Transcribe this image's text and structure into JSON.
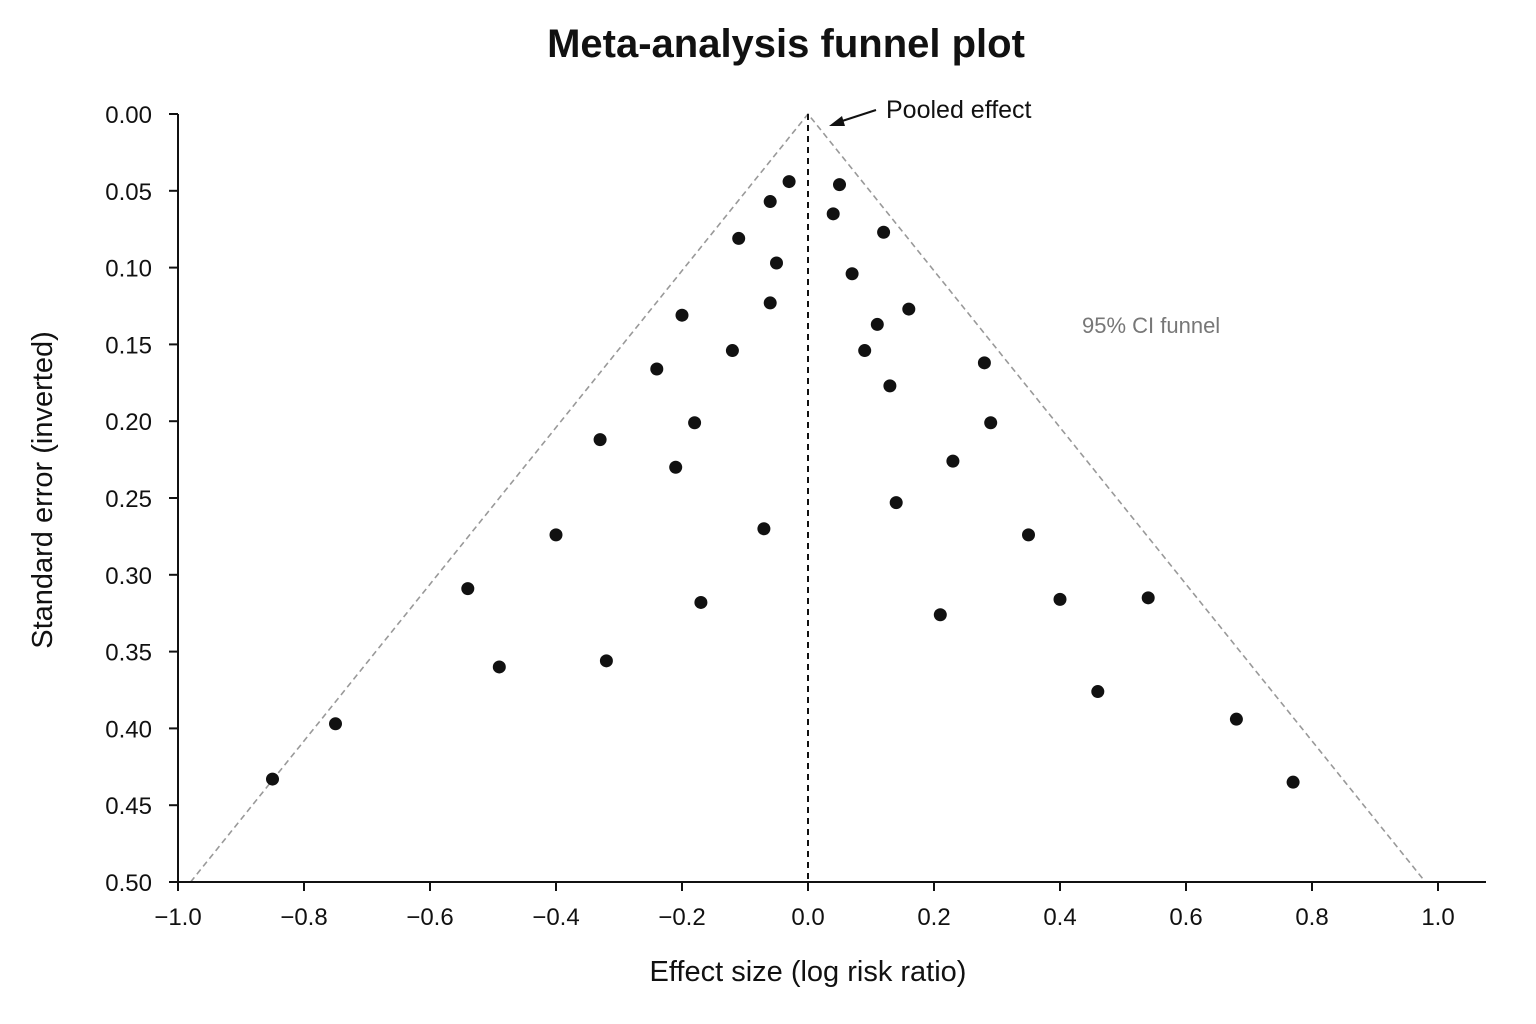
{
  "chart_data": {
    "type": "scatter",
    "title": "Meta-analysis funnel plot",
    "xlabel": "Effect size (log risk ratio)",
    "ylabel": "Standard error (inverted)",
    "xlim": [
      -1.0,
      1.0
    ],
    "ylim": [
      0.0,
      0.5
    ],
    "y_inverted": true,
    "x_ticks": [
      "−1.0",
      "−0.8",
      "−0.6",
      "−0.4",
      "−0.2",
      "0.0",
      "0.2",
      "0.4",
      "0.6",
      "0.8",
      "1.0"
    ],
    "x_tick_values": [
      -1.0,
      -0.8,
      -0.6,
      -0.4,
      -0.2,
      0.0,
      0.2,
      0.4,
      0.6,
      0.8,
      1.0
    ],
    "y_ticks": [
      "0.00",
      "0.05",
      "0.10",
      "0.15",
      "0.20",
      "0.25",
      "0.30",
      "0.35",
      "0.40",
      "0.45",
      "0.50"
    ],
    "y_tick_values": [
      0.0,
      0.05,
      0.1,
      0.15,
      0.2,
      0.25,
      0.3,
      0.35,
      0.4,
      0.45,
      0.5
    ],
    "pooled_effect": 0.0,
    "pooled_label": "Pooled effect",
    "funnel_label": "95% CI funnel",
    "grid": false,
    "colors": {
      "points": "#111111",
      "funnel": "#999999",
      "pooled": "#111111"
    },
    "points": [
      {
        "x": -0.03,
        "y": 0.044
      },
      {
        "x": 0.05,
        "y": 0.046
      },
      {
        "x": -0.06,
        "y": 0.057
      },
      {
        "x": 0.04,
        "y": 0.065
      },
      {
        "x": 0.12,
        "y": 0.077
      },
      {
        "x": -0.11,
        "y": 0.081
      },
      {
        "x": -0.05,
        "y": 0.097
      },
      {
        "x": 0.07,
        "y": 0.104
      },
      {
        "x": -0.06,
        "y": 0.123
      },
      {
        "x": 0.16,
        "y": 0.127
      },
      {
        "x": -0.2,
        "y": 0.131
      },
      {
        "x": 0.11,
        "y": 0.137
      },
      {
        "x": -0.12,
        "y": 0.154
      },
      {
        "x": 0.09,
        "y": 0.154
      },
      {
        "x": 0.28,
        "y": 0.162
      },
      {
        "x": -0.24,
        "y": 0.166
      },
      {
        "x": 0.13,
        "y": 0.177
      },
      {
        "x": -0.18,
        "y": 0.201
      },
      {
        "x": 0.29,
        "y": 0.201
      },
      {
        "x": -0.33,
        "y": 0.212
      },
      {
        "x": 0.23,
        "y": 0.226
      },
      {
        "x": -0.21,
        "y": 0.23
      },
      {
        "x": 0.14,
        "y": 0.253
      },
      {
        "x": -0.07,
        "y": 0.27
      },
      {
        "x": -0.4,
        "y": 0.274
      },
      {
        "x": 0.35,
        "y": 0.274
      },
      {
        "x": -0.54,
        "y": 0.309
      },
      {
        "x": 0.54,
        "y": 0.315
      },
      {
        "x": 0.4,
        "y": 0.316
      },
      {
        "x": -0.17,
        "y": 0.318
      },
      {
        "x": 0.21,
        "y": 0.326
      },
      {
        "x": -0.32,
        "y": 0.356
      },
      {
        "x": -0.49,
        "y": 0.36
      },
      {
        "x": 0.46,
        "y": 0.376
      },
      {
        "x": 0.68,
        "y": 0.394
      },
      {
        "x": -0.75,
        "y": 0.397
      },
      {
        "x": -0.85,
        "y": 0.433
      },
      {
        "x": 0.77,
        "y": 0.435
      }
    ]
  }
}
